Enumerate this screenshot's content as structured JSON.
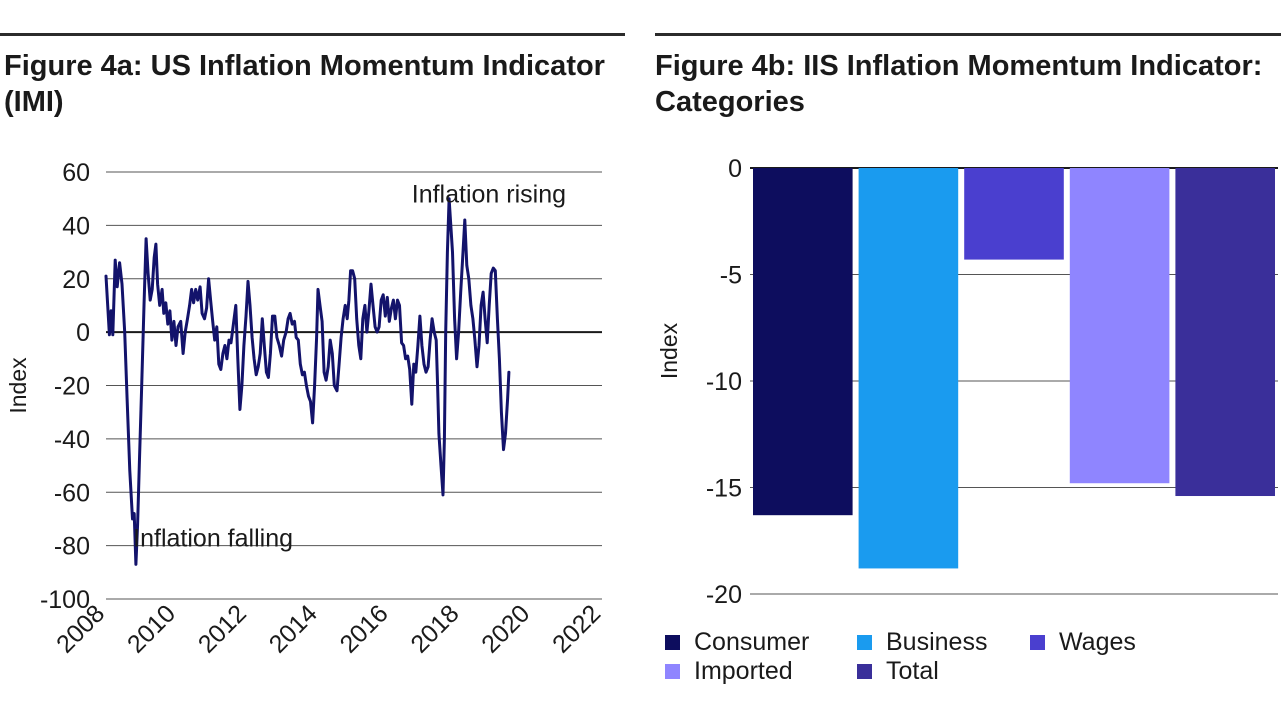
{
  "chart_data": [
    {
      "type": "line",
      "title": "Figure 4a: US Inflation Momentum Indicator (IMI)",
      "xlabel": "",
      "ylabel": "Index",
      "ylim": [
        -100,
        60
      ],
      "yticks": [
        60,
        40,
        20,
        0,
        -20,
        -40,
        -60,
        -80,
        -100
      ],
      "xlim": [
        2008,
        2022.6
      ],
      "xticks": [
        "2008",
        "2010",
        "2012",
        "2014",
        "2016",
        "2018",
        "2020",
        "2022"
      ],
      "grid": true,
      "series_color": "#13136b",
      "annotations": [
        {
          "text": "Inflation rising",
          "x": 2017.0,
          "y": 52
        },
        {
          "text": "Inflation falling",
          "x": 2008.8,
          "y": -77
        }
      ],
      "series": [
        {
          "name": "US IMI",
          "points": [
            [
              2008.0,
              21
            ],
            [
              2008.05,
              10
            ],
            [
              2008.1,
              -1
            ],
            [
              2008.15,
              8
            ],
            [
              2008.2,
              -1
            ],
            [
              2008.27,
              27
            ],
            [
              2008.33,
              17
            ],
            [
              2008.4,
              26
            ],
            [
              2008.47,
              18
            ],
            [
              2008.55,
              0
            ],
            [
              2008.62,
              -25
            ],
            [
              2008.7,
              -52
            ],
            [
              2008.78,
              -70
            ],
            [
              2008.83,
              -68
            ],
            [
              2008.88,
              -87
            ],
            [
              2008.93,
              -72
            ],
            [
              2008.98,
              -50
            ],
            [
              2009.05,
              -20
            ],
            [
              2009.12,
              10
            ],
            [
              2009.18,
              35
            ],
            [
              2009.24,
              22
            ],
            [
              2009.3,
              12
            ],
            [
              2009.36,
              16
            ],
            [
              2009.42,
              28
            ],
            [
              2009.47,
              33
            ],
            [
              2009.52,
              18
            ],
            [
              2009.58,
              10
            ],
            [
              2009.65,
              16
            ],
            [
              2009.7,
              7
            ],
            [
              2009.76,
              11
            ],
            [
              2009.82,
              3
            ],
            [
              2009.88,
              8
            ],
            [
              2009.94,
              -3
            ],
            [
              2010.0,
              4
            ],
            [
              2010.06,
              -5
            ],
            [
              2010.12,
              2
            ],
            [
              2010.2,
              4
            ],
            [
              2010.27,
              -8
            ],
            [
              2010.33,
              0
            ],
            [
              2010.4,
              5
            ],
            [
              2010.46,
              10
            ],
            [
              2010.52,
              16
            ],
            [
              2010.58,
              11
            ],
            [
              2010.64,
              16
            ],
            [
              2010.7,
              12
            ],
            [
              2010.77,
              17
            ],
            [
              2010.83,
              7
            ],
            [
              2010.9,
              5
            ],
            [
              2010.96,
              9
            ],
            [
              2011.02,
              20
            ],
            [
              2011.08,
              12
            ],
            [
              2011.14,
              4
            ],
            [
              2011.2,
              -3
            ],
            [
              2011.26,
              2
            ],
            [
              2011.32,
              -12
            ],
            [
              2011.38,
              -14
            ],
            [
              2011.44,
              -8
            ],
            [
              2011.5,
              -5
            ],
            [
              2011.56,
              -10
            ],
            [
              2011.62,
              -3
            ],
            [
              2011.68,
              -4
            ],
            [
              2011.75,
              3
            ],
            [
              2011.82,
              10
            ],
            [
              2011.88,
              -10
            ],
            [
              2011.94,
              -29
            ],
            [
              2012.0,
              -20
            ],
            [
              2012.06,
              -5
            ],
            [
              2012.12,
              6
            ],
            [
              2012.18,
              19
            ],
            [
              2012.24,
              10
            ],
            [
              2012.3,
              -2
            ],
            [
              2012.36,
              -10
            ],
            [
              2012.42,
              -16
            ],
            [
              2012.48,
              -13
            ],
            [
              2012.54,
              -8
            ],
            [
              2012.6,
              5
            ],
            [
              2012.66,
              -5
            ],
            [
              2012.72,
              -15
            ],
            [
              2012.78,
              -17
            ],
            [
              2012.84,
              -8
            ],
            [
              2012.9,
              6
            ],
            [
              2012.97,
              6
            ],
            [
              2013.03,
              -2
            ],
            [
              2013.1,
              -5
            ],
            [
              2013.17,
              -9
            ],
            [
              2013.23,
              -3
            ],
            [
              2013.3,
              0
            ],
            [
              2013.36,
              5
            ],
            [
              2013.42,
              7
            ],
            [
              2013.48,
              3
            ],
            [
              2013.55,
              4
            ],
            [
              2013.6,
              -2
            ],
            [
              2013.66,
              -3
            ],
            [
              2013.72,
              -12
            ],
            [
              2013.78,
              -16
            ],
            [
              2013.84,
              -15
            ],
            [
              2013.9,
              -20
            ],
            [
              2013.96,
              -24
            ],
            [
              2014.02,
              -26
            ],
            [
              2014.08,
              -34
            ],
            [
              2014.14,
              -20
            ],
            [
              2014.2,
              -2
            ],
            [
              2014.24,
              16
            ],
            [
              2014.3,
              10
            ],
            [
              2014.36,
              4
            ],
            [
              2014.42,
              -15
            ],
            [
              2014.48,
              -18
            ],
            [
              2014.54,
              -13
            ],
            [
              2014.6,
              -3
            ],
            [
              2014.66,
              -8
            ],
            [
              2014.72,
              -20
            ],
            [
              2014.8,
              -22
            ],
            [
              2014.86,
              -12
            ],
            [
              2014.92,
              -2
            ],
            [
              2014.98,
              5
            ],
            [
              2015.04,
              10
            ],
            [
              2015.1,
              5
            ],
            [
              2015.15,
              12
            ],
            [
              2015.2,
              23
            ],
            [
              2015.26,
              23
            ],
            [
              2015.32,
              20
            ],
            [
              2015.38,
              5
            ],
            [
              2015.44,
              -5
            ],
            [
              2015.5,
              -10
            ],
            [
              2015.56,
              5
            ],
            [
              2015.62,
              10
            ],
            [
              2015.68,
              0
            ],
            [
              2015.74,
              8
            ],
            [
              2015.8,
              18
            ],
            [
              2015.86,
              10
            ],
            [
              2015.92,
              2
            ],
            [
              2015.98,
              0
            ],
            [
              2016.04,
              2
            ],
            [
              2016.1,
              12
            ],
            [
              2016.16,
              14
            ],
            [
              2016.22,
              6
            ],
            [
              2016.28,
              13
            ],
            [
              2016.34,
              4
            ],
            [
              2016.4,
              9
            ],
            [
              2016.46,
              12
            ],
            [
              2016.52,
              5
            ],
            [
              2016.58,
              12
            ],
            [
              2016.64,
              10
            ],
            [
              2016.7,
              -4
            ],
            [
              2016.76,
              -5
            ],
            [
              2016.82,
              -10
            ],
            [
              2016.88,
              -9
            ],
            [
              2016.94,
              -14
            ],
            [
              2017.0,
              -27
            ],
            [
              2017.06,
              -12
            ],
            [
              2017.12,
              -15
            ],
            [
              2017.18,
              -5
            ],
            [
              2017.24,
              6
            ],
            [
              2017.3,
              -5
            ],
            [
              2017.36,
              -12
            ],
            [
              2017.42,
              -15
            ],
            [
              2017.48,
              -13
            ],
            [
              2017.54,
              -3
            ],
            [
              2017.6,
              5
            ],
            [
              2017.66,
              0
            ],
            [
              2017.72,
              -3
            ],
            [
              2017.76,
              -20
            ],
            [
              2017.8,
              -38
            ],
            [
              2017.86,
              -50
            ],
            [
              2017.92,
              -61
            ],
            [
              2017.96,
              -40
            ],
            [
              2018.0,
              0
            ],
            [
              2018.05,
              30
            ],
            [
              2018.1,
              50
            ],
            [
              2018.15,
              40
            ],
            [
              2018.2,
              30
            ],
            [
              2018.26,
              5
            ],
            [
              2018.32,
              -10
            ],
            [
              2018.38,
              0
            ],
            [
              2018.44,
              15
            ],
            [
              2018.5,
              28
            ],
            [
              2018.56,
              42
            ],
            [
              2018.62,
              25
            ],
            [
              2018.68,
              20
            ],
            [
              2018.74,
              10
            ],
            [
              2018.8,
              5
            ],
            [
              2018.86,
              -3
            ],
            [
              2018.92,
              -13
            ],
            [
              2018.98,
              -5
            ],
            [
              2019.04,
              10
            ],
            [
              2019.1,
              15
            ],
            [
              2019.16,
              5
            ],
            [
              2019.22,
              -4
            ],
            [
              2019.28,
              10
            ],
            [
              2019.34,
              22
            ],
            [
              2019.4,
              24
            ],
            [
              2019.46,
              23
            ],
            [
              2019.52,
              5
            ],
            [
              2019.58,
              -10
            ],
            [
              2019.64,
              -30
            ],
            [
              2019.7,
              -44
            ],
            [
              2019.76,
              -38
            ],
            [
              2019.82,
              -25
            ],
            [
              2019.86,
              -15
            ]
          ]
        }
      ]
    },
    {
      "type": "bar",
      "title": "Figure 4b: IIS Inflation Momentum Indicator: Categories",
      "xlabel": "",
      "ylabel": "Index",
      "ylim": [
        -20,
        0
      ],
      "yticks": [
        "0",
        "-5",
        "-10",
        "-15",
        "-20"
      ],
      "grid": true,
      "categories": [
        "Consumer",
        "Business",
        "Wages",
        "Imported",
        "Total"
      ],
      "values": [
        -16.3,
        -18.8,
        -4.3,
        -14.8,
        -15.4
      ],
      "colors": [
        "#0d0d5e",
        "#1a9bef",
        "#4a3fcf",
        "#8f85ff",
        "#3a2f9a"
      ],
      "legend_position": "bottom"
    }
  ]
}
